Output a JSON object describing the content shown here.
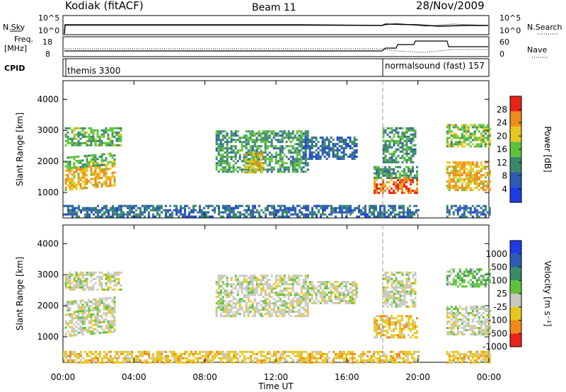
{
  "header": {
    "station": "Kodiak (fitACF)",
    "beam": "Beam 11",
    "date": "28/Nov/2009"
  },
  "status_panels": {
    "nsky_label": "N.Sky",
    "nsky_ticks": [
      "10^5",
      "10^0"
    ],
    "nsearch_label": "N.Search",
    "nsearch_ticks": [
      "10^5",
      "10^0"
    ],
    "freq_label_1": "Freq.",
    "freq_label_2": "[MHz]",
    "freq_ticks": [
      "18",
      "8"
    ],
    "nave_label": "Nave",
    "nave_ticks": [
      "60",
      "0"
    ],
    "cpid_label": "CPID",
    "cpid_segments": [
      {
        "name": "themis 3300",
        "start_hour": 0
      },
      {
        "name": "normalsound (fast) 157",
        "start_hour": 18
      }
    ]
  },
  "chart_data": [
    {
      "type": "heatmap",
      "title": "",
      "xlabel": "Time UT",
      "ylabel": "Slant Range [km]",
      "xlim": [
        0,
        24
      ],
      "ylim": [
        180,
        4600
      ],
      "yticks": [
        "1000",
        "2000",
        "3000",
        "4000"
      ],
      "colorbar_label": "Power [dB]",
      "colorbar_ticks": [
        "4",
        "8",
        "12",
        "16",
        "20",
        "24",
        "28"
      ],
      "colorbar_range": [
        0,
        32
      ],
      "colors": [
        "#1e3ce6",
        "#2e5bb0",
        "#3a8a6a",
        "#5fc23a",
        "#e8c81e",
        "#f08a1a",
        "#e82418"
      ],
      "features": [
        {
          "t0": 0.1,
          "t1": 2.9,
          "r0": 1050,
          "r1": 1800,
          "level": 20,
          "slope": 150
        },
        {
          "t0": 0.1,
          "t1": 2.9,
          "r0": 1800,
          "r1": 2150,
          "level": 12,
          "slope": 150
        },
        {
          "t0": 0.1,
          "t1": 3.3,
          "r0": 2550,
          "r1": 3100,
          "level": 12,
          "slope": 0
        },
        {
          "t0": 8.6,
          "t1": 13.8,
          "r0": 1700,
          "r1": 3000,
          "level": 10,
          "slope": 0
        },
        {
          "t0": 10.2,
          "t1": 11.2,
          "r0": 1650,
          "r1": 2300,
          "level": 18,
          "slope": 0
        },
        {
          "t0": 13.5,
          "t1": 16.5,
          "r0": 2100,
          "r1": 2800,
          "level": 6,
          "slope": 0
        },
        {
          "t0": 17.5,
          "t1": 20.0,
          "r0": 1000,
          "r1": 1500,
          "level": 24,
          "slope": 0
        },
        {
          "t0": 17.5,
          "t1": 20.0,
          "r0": 1500,
          "r1": 1850,
          "level": 10,
          "slope": 0
        },
        {
          "t0": 18.0,
          "t1": 19.8,
          "r0": 2000,
          "r1": 3100,
          "level": 10,
          "slope": 0
        },
        {
          "t0": 21.6,
          "t1": 24.0,
          "r0": 1100,
          "r1": 2000,
          "level": 20,
          "slope": 0
        },
        {
          "t0": 21.6,
          "t1": 24.0,
          "r0": 2500,
          "r1": 3200,
          "level": 14,
          "slope": 0
        },
        {
          "t0": 0.0,
          "t1": 20.0,
          "r0": 200,
          "r1": 600,
          "level": 6,
          "slope": 0
        },
        {
          "t0": 21.6,
          "t1": 24.0,
          "r0": 200,
          "r1": 600,
          "level": 6,
          "slope": 0
        }
      ]
    },
    {
      "type": "heatmap",
      "title": "",
      "xlabel": "Time UT",
      "ylabel": "Slant Range [km]",
      "xlim": [
        0,
        24
      ],
      "ylim": [
        180,
        4600
      ],
      "yticks": [
        "1000",
        "2000",
        "3000",
        "4000"
      ],
      "xticks": [
        "00:00",
        "04:00",
        "08:00",
        "12:00",
        "16:00",
        "20:00",
        "00:00"
      ],
      "colorbar_label": "Velocity [m s⁻¹]",
      "colorbar_ticks": [
        "1000",
        "500",
        "100",
        "25",
        "-25",
        "-100",
        "-500",
        "-1000"
      ],
      "colors": [
        "#1e3ce6",
        "#2e5bb0",
        "#3a8a6a",
        "#5fc23a",
        "#c8c8c0",
        "#e8c81e",
        "#f08a1a",
        "#e82418"
      ],
      "features": [
        {
          "t0": 0.1,
          "t1": 2.9,
          "r0": 1050,
          "r1": 2150,
          "level": 4,
          "slope": 150
        },
        {
          "t0": 0.1,
          "t1": 3.3,
          "r0": 2550,
          "r1": 3100,
          "level": 4,
          "slope": 0
        },
        {
          "t0": 8.6,
          "t1": 13.8,
          "r0": 1700,
          "r1": 3000,
          "level": 4,
          "slope": 0
        },
        {
          "t0": 13.5,
          "t1": 16.5,
          "r0": 2100,
          "r1": 2800,
          "level": 4,
          "slope": 0
        },
        {
          "t0": 17.5,
          "t1": 20.0,
          "r0": 1000,
          "r1": 1700,
          "level": 5,
          "slope": 0
        },
        {
          "t0": 18.0,
          "t1": 19.8,
          "r0": 2000,
          "r1": 3100,
          "level": 4,
          "slope": 0
        },
        {
          "t0": 21.6,
          "t1": 24.0,
          "r0": 1100,
          "r1": 2000,
          "level": 4,
          "slope": 0
        },
        {
          "t0": 21.6,
          "t1": 24.0,
          "r0": 2600,
          "r1": 3200,
          "level": 3,
          "slope": 0
        },
        {
          "t0": 0.0,
          "t1": 20.0,
          "r0": 200,
          "r1": 550,
          "level": 5,
          "slope": 0
        },
        {
          "t0": 21.6,
          "t1": 24.0,
          "r0": 200,
          "r1": 550,
          "level": 5,
          "slope": 0
        }
      ]
    }
  ]
}
